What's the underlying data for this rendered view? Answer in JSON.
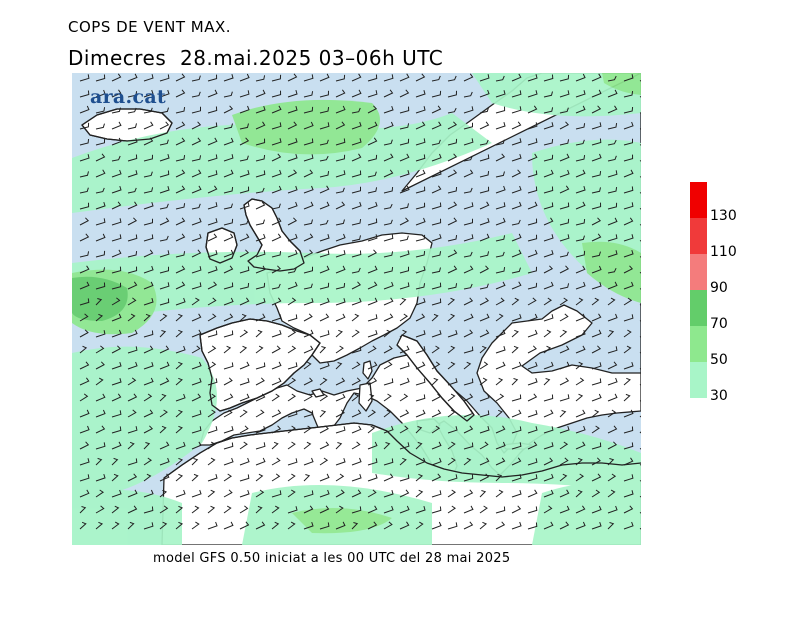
{
  "header": {
    "title": "COPS DE VENT MAX.",
    "subtitle": "Dimecres  28.mai.2025 03–06h UTC"
  },
  "logo": {
    "text": "ara.cat"
  },
  "footer": {
    "text": "model GFS 0.50 iniciat a les 00 UTC del 28 mai 2025"
  },
  "legend": {
    "unit_note": "",
    "classes": [
      {
        "from": 30,
        "to": 50,
        "color": "#a8f5c8"
      },
      {
        "from": 50,
        "to": 70,
        "color": "#8ee88e"
      },
      {
        "from": 70,
        "to": 90,
        "color": "#63cd6a"
      },
      {
        "from": 90,
        "to": 110,
        "color": "#f47c7c"
      },
      {
        "from": 110,
        "to": 130,
        "color": "#f03a3a"
      },
      {
        "from": 130,
        "to": 150,
        "color": "#f00000"
      }
    ],
    "tick_labels": [
      "30",
      "50",
      "70",
      "90",
      "110",
      "130"
    ]
  },
  "map": {
    "sea_color": "#c9dff0",
    "land_color": "#ffffff",
    "coast_color": "#222222",
    "barb_color": "#222222"
  }
}
